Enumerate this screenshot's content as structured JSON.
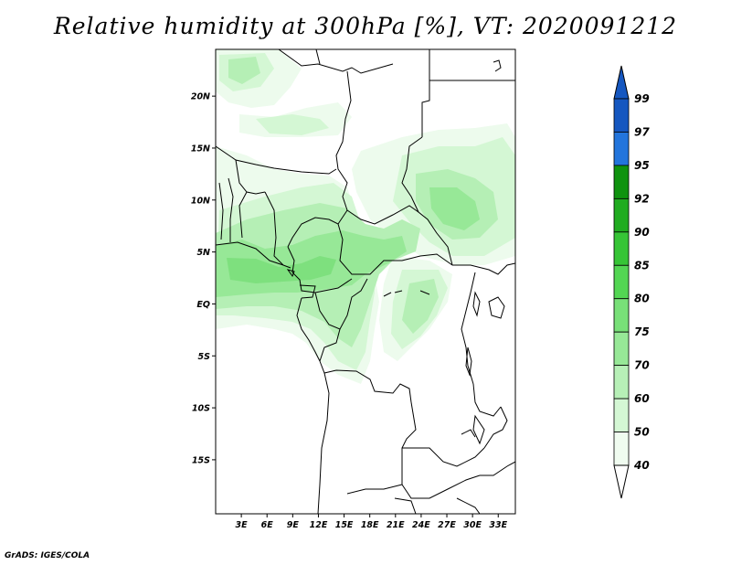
{
  "title": "Relative humidity at 300hPa [%], VT: 2020091212",
  "footer": "GrADS: IGES/COLA",
  "map": {
    "lat_labels": [
      "20N",
      "15N",
      "10N",
      "5N",
      "EQ",
      "5S",
      "10S",
      "15S"
    ],
    "lat_values": [
      20,
      15,
      10,
      5,
      0,
      -5,
      -10,
      -15
    ],
    "lon_labels": [
      "3E",
      "6E",
      "9E",
      "12E",
      "15E",
      "18E",
      "21E",
      "24E",
      "27E",
      "30E",
      "33E"
    ],
    "lon_values": [
      3,
      6,
      9,
      12,
      15,
      18,
      21,
      24,
      27,
      30,
      33
    ]
  },
  "colorbar": {
    "labels": [
      "99",
      "97",
      "95",
      "92",
      "90",
      "85",
      "80",
      "75",
      "70",
      "60",
      "50",
      "40"
    ],
    "colors": {
      "c40": "#f0fcf0",
      "c50": "#d4f7d4",
      "c60": "#b7f0b7",
      "c70": "#97e897",
      "c75": "#78e078",
      "c80": "#53d653",
      "c85": "#36c536",
      "c90": "#20ac20",
      "c92": "#0f930f",
      "c95": "#3c93ea",
      "c97": "#2375dc",
      "c99": "#1557c0"
    }
  }
}
